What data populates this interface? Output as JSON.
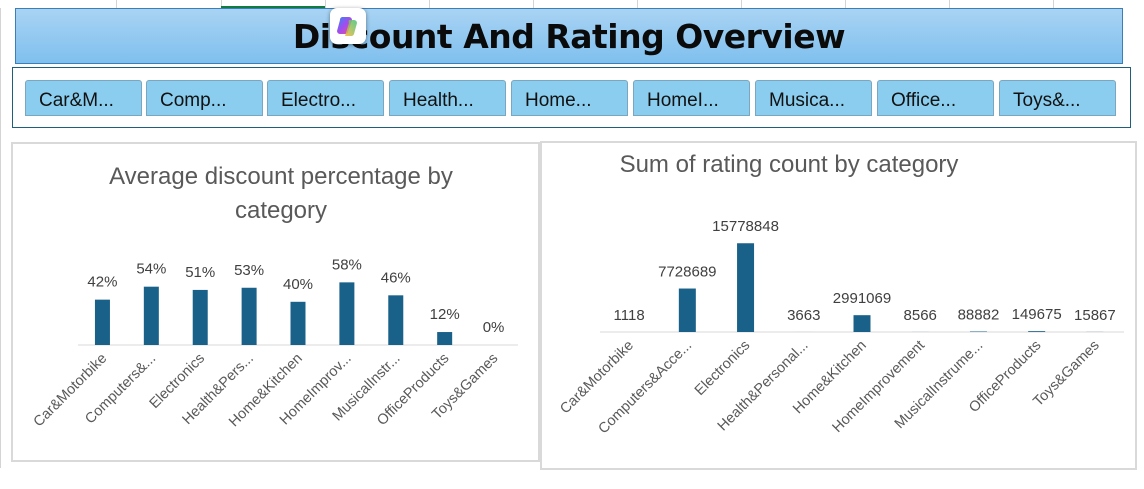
{
  "dashboard": {
    "title": "Discount And Rating Overview"
  },
  "slicer": {
    "items": [
      "Car&M...",
      "Comp...",
      "Electro...",
      "Health...",
      "Home...",
      "HomeI...",
      "Musica...",
      "Office...",
      "Toys&..."
    ]
  },
  "colors": {
    "bar": "#1a6189",
    "banner": "#7fc0ee",
    "slicer_item": "#8acdee"
  },
  "chart_data": [
    {
      "type": "bar",
      "title": "Average discount percentage by category",
      "title_lines": [
        "Average discount percentage by",
        "category"
      ],
      "categories": [
        "Car&Motorbike",
        "Computers&...",
        "Electronics",
        "Health&Pers...",
        "Home&Kitchen",
        "HomeImprov...",
        "MusicalInstr...",
        "OfficeProducts",
        "Toys&Games"
      ],
      "values": [
        42,
        54,
        51,
        53,
        40,
        58,
        46,
        12,
        0
      ],
      "value_labels": [
        "42%",
        "54%",
        "51%",
        "53%",
        "40%",
        "58%",
        "46%",
        "12%",
        "0%"
      ],
      "xlabel": "",
      "ylabel": "",
      "ylim": [
        0,
        100
      ],
      "grid": false,
      "legend": "none"
    },
    {
      "type": "bar",
      "title": "Sum of rating count by category",
      "title_lines": [
        "Sum of rating count by category"
      ],
      "categories": [
        "Car&Motorbike",
        "Computers&Acce...",
        "Electronics",
        "Health&Personal...",
        "Home&Kitchen",
        "HomeImprovement",
        "MusicalInstrume...",
        "OfficeProducts",
        "Toys&Games"
      ],
      "values": [
        1118,
        7728689,
        15778848,
        3663,
        2991069,
        8566,
        88882,
        149675,
        15867
      ],
      "value_labels": [
        "1118",
        "7728689",
        "15778848",
        "3663",
        "2991069",
        "8566",
        "88882",
        "149675",
        "15867"
      ],
      "xlabel": "",
      "ylabel": "",
      "ylim": [
        0,
        16000000
      ],
      "grid": false,
      "legend": "none"
    }
  ]
}
